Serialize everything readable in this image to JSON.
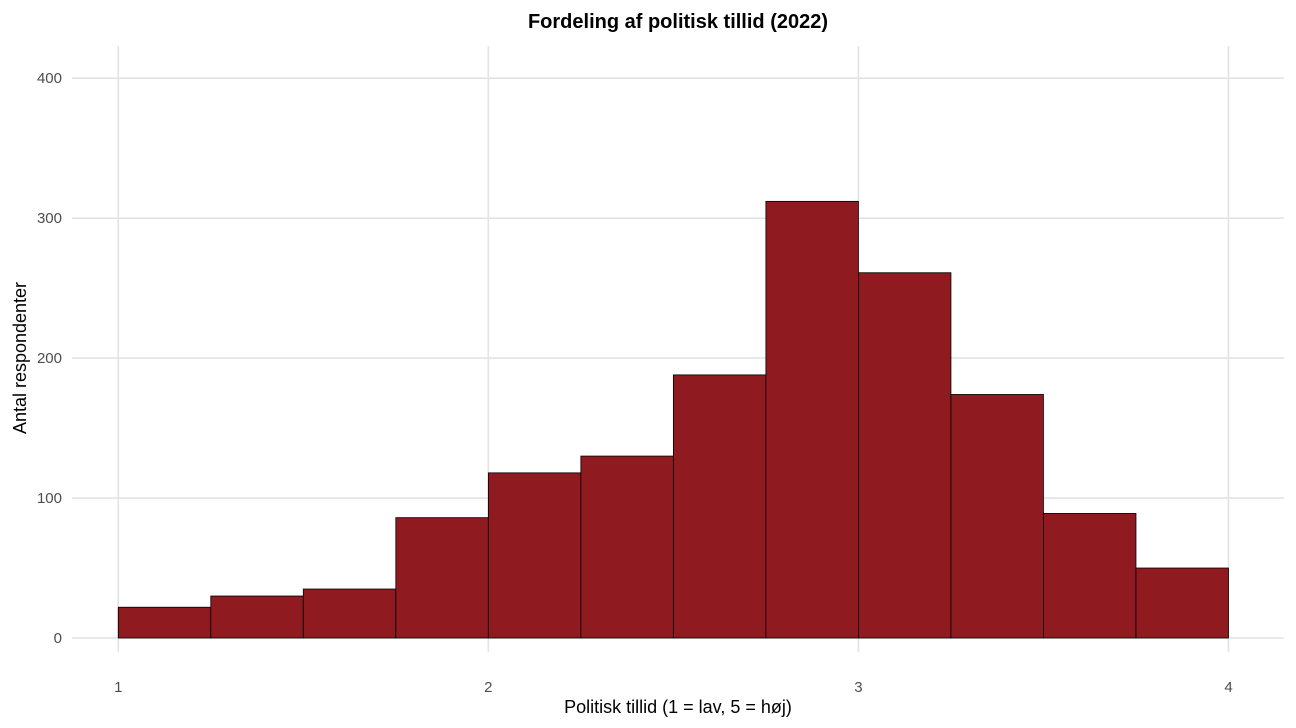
{
  "chart_data": {
    "type": "bar",
    "subtype": "histogram",
    "title": "Fordeling af politisk tillid (2022)",
    "xlabel": "Politisk tillid (1 = lav, 5 = høj)",
    "ylabel": "Antal respondenter",
    "xlim": [
      0.875,
      4.15
    ],
    "ylim": [
      -10,
      423
    ],
    "x_ticks": [
      1,
      2,
      3,
      4
    ],
    "y_ticks": [
      0,
      100,
      200,
      300,
      400
    ],
    "bin_width": 0.25,
    "bins": [
      {
        "start": 1.0,
        "end": 1.25,
        "count": 22
      },
      {
        "start": 1.25,
        "end": 1.5,
        "count": 30
      },
      {
        "start": 1.5,
        "end": 1.75,
        "count": 35
      },
      {
        "start": 1.75,
        "end": 2.0,
        "count": 86
      },
      {
        "start": 2.0,
        "end": 2.25,
        "count": 118
      },
      {
        "start": 2.25,
        "end": 2.5,
        "count": 130
      },
      {
        "start": 2.5,
        "end": 2.75,
        "count": 188
      },
      {
        "start": 2.75,
        "end": 3.0,
        "count": 312
      },
      {
        "start": 3.0,
        "end": 3.25,
        "count": 261
      },
      {
        "start": 3.25,
        "end": 3.5,
        "count": 174
      },
      {
        "start": 3.5,
        "end": 3.75,
        "count": 89
      },
      {
        "start": 3.75,
        "end": 4.0,
        "count": 50
      }
    ],
    "bar_color": "#8f1a1f",
    "bar_edge_color": "#000000",
    "grid": true,
    "legend": "none"
  }
}
